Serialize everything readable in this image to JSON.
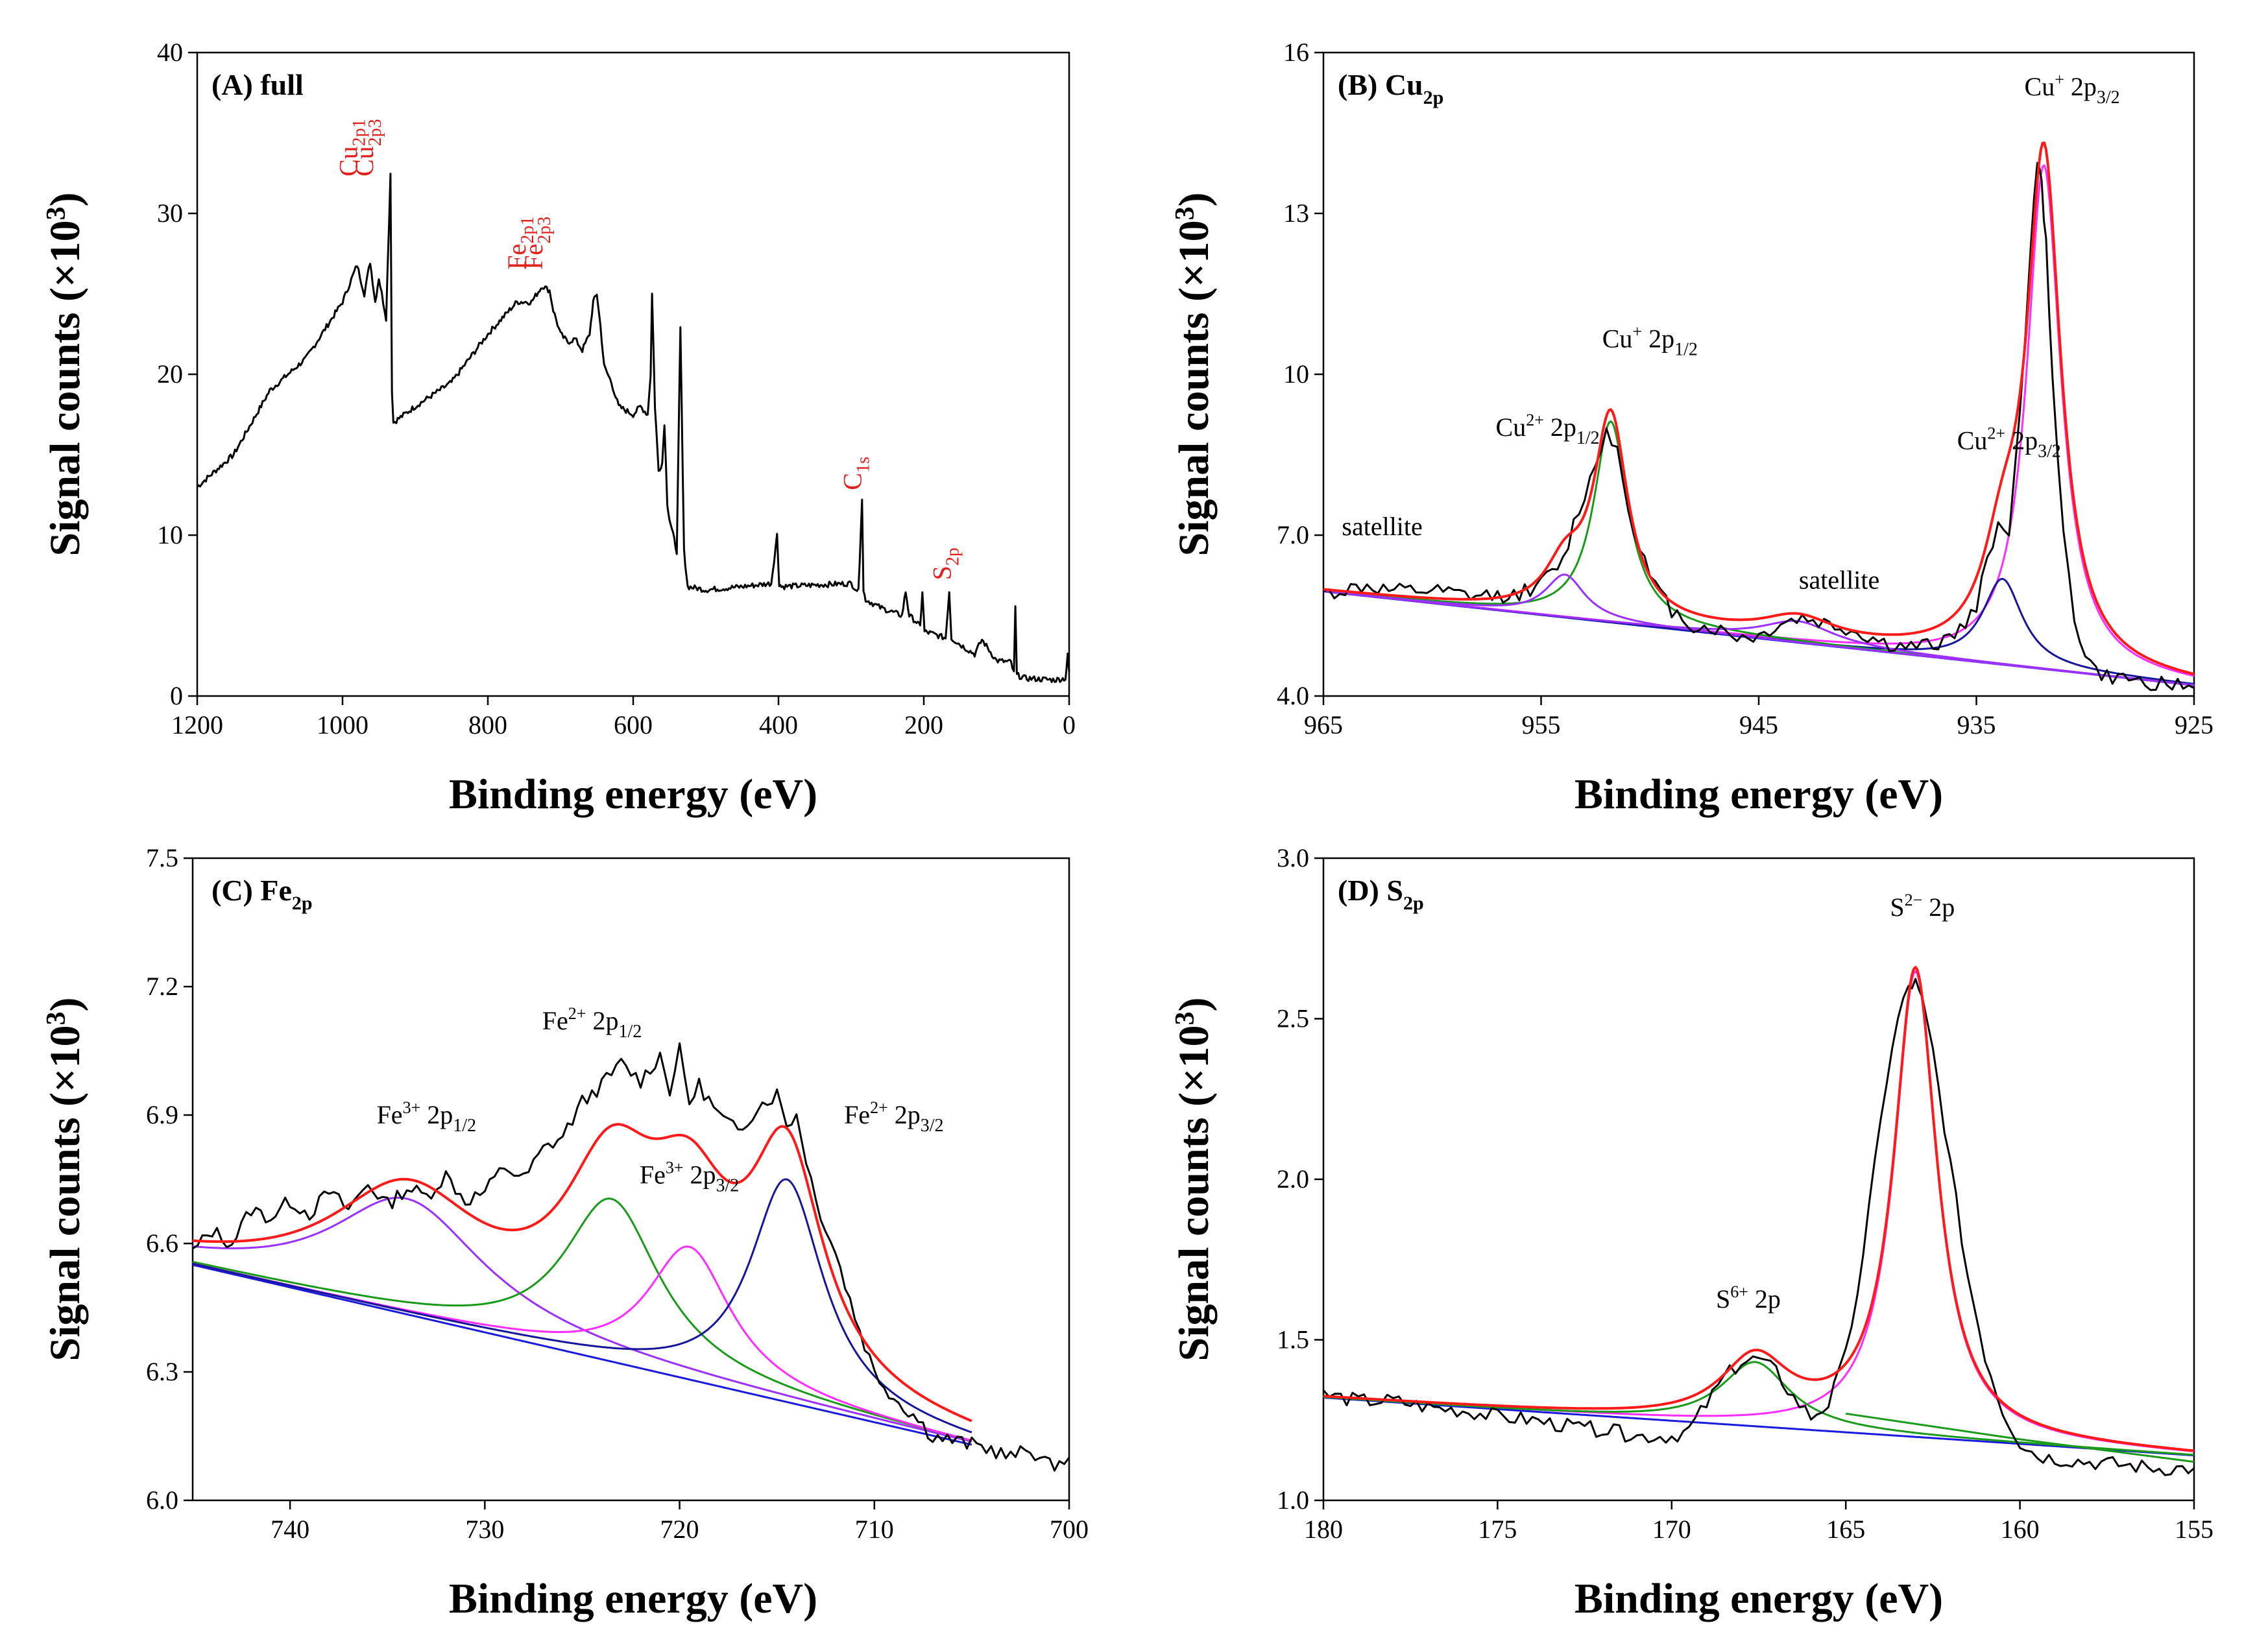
{
  "colors": {
    "raw": "#000000",
    "envelope": "#ff1a1a",
    "background": "#1a1adc",
    "green": "#199a19",
    "violet": "#9b30ff",
    "magenta": "#ff2cff",
    "navy": "#16169a",
    "label_red": "#e0201c"
  },
  "chart_data": [
    {
      "id": "A",
      "type": "line",
      "title": {
        "main": "(A) full",
        "sub": ""
      },
      "xlabel": "Binding energy (eV)",
      "ylabel": {
        "main": "Signal counts (×10",
        "sup": "3",
        "end": ")"
      },
      "xlim": [
        1200,
        0
      ],
      "ylim": [
        0,
        40
      ],
      "xticks": [
        1200,
        1000,
        800,
        600,
        400,
        200,
        0
      ],
      "xtick_labels": [
        "1200",
        "1000",
        "800",
        "600",
        "400",
        "200",
        "0"
      ],
      "yticks": [
        0,
        10,
        20,
        30,
        40
      ],
      "ytick_labels": [
        "0",
        "10",
        "20",
        "30",
        "40"
      ],
      "series": [
        {
          "name": "survey",
          "color": "raw",
          "x": [
            1200,
            1150,
            1100,
            1050,
            1000,
            980,
            970,
            962,
            955,
            950,
            940,
            934,
            932,
            930,
            900,
            850,
            800,
            760,
            740,
            725,
            715,
            710,
            700,
            690,
            680,
            670,
            660,
            655,
            650,
            645,
            640,
            630,
            620,
            600,
            590,
            580,
            576,
            574,
            570,
            565,
            560,
            557,
            553,
            550,
            545,
            540,
            535,
            530,
            525,
            500,
            450,
            410,
            402,
            399,
            396,
            350,
            300,
            290,
            285,
            283,
            280,
            260,
            230,
            225,
            220,
            210,
            205,
            202,
            199,
            190,
            170,
            165,
            162,
            150,
            130,
            120,
            100,
            80,
            76,
            74,
            72,
            60,
            20,
            5,
            2,
            0
          ],
          "y": [
            13,
            15,
            19,
            21,
            24.5,
            26.8,
            25,
            27,
            24.5,
            26,
            23.5,
            32.5,
            19,
            17,
            18,
            19.5,
            22.5,
            24.5,
            24.5,
            25.5,
            25.2,
            24,
            22.5,
            22,
            22.2,
            21.5,
            22.5,
            24.5,
            25,
            23,
            20.5,
            19.5,
            18,
            17.5,
            18,
            17.5,
            20,
            25,
            18,
            14,
            14.5,
            17,
            12,
            11,
            10,
            9,
            22.8,
            9,
            6.8,
            6.6,
            6.8,
            7,
            10,
            7,
            6.8,
            6.9,
            7,
            6.5,
            12.3,
            6.5,
            6,
            5.5,
            5,
            6.5,
            5,
            4.6,
            4.3,
            6.5,
            4,
            3.9,
            3.6,
            6.5,
            3.6,
            3.2,
            2.6,
            3.5,
            2.2,
            2.1,
            1.4,
            5.5,
            1.3,
            1.1,
            1,
            1.1,
            2.5,
            1.5
          ]
        }
      ],
      "annotations": [
        {
          "x": 980,
          "y": 32.3,
          "base": "Cu",
          "sub": "2p1",
          "sup": "",
          "color": "label_red",
          "rotate": -90
        },
        {
          "x": 958,
          "y": 32.3,
          "base": "Cu",
          "sub": "2p3",
          "sup": "",
          "color": "label_red",
          "rotate": -90
        },
        {
          "x": 748,
          "y": 26.5,
          "base": "Fe",
          "sub": "2p1",
          "sup": "",
          "color": "label_red",
          "rotate": -90
        },
        {
          "x": 725,
          "y": 26.5,
          "base": "Fe",
          "sub": "2p3",
          "sup": "",
          "color": "label_red",
          "rotate": -90
        },
        {
          "x": 286,
          "y": 12.8,
          "base": "C",
          "sub": "1s",
          "sup": "",
          "color": "label_red",
          "rotate": -90
        },
        {
          "x": 163,
          "y": 7.2,
          "base": "S",
          "sub": "2p",
          "sup": "",
          "color": "label_red",
          "rotate": -90
        }
      ]
    },
    {
      "id": "B",
      "type": "line",
      "title": {
        "main": "(B) Cu",
        "sub": "2p"
      },
      "xlabel": "Binding energy (eV)",
      "ylabel": {
        "main": "Signal counts (×10",
        "sup": "3",
        "end": ")"
      },
      "xlim": [
        965,
        925
      ],
      "ylim": [
        4,
        16
      ],
      "xticks": [
        965,
        955,
        945,
        935,
        925
      ],
      "xtick_labels": [
        "965",
        "955",
        "945",
        "935",
        "925"
      ],
      "yticks": [
        4,
        7,
        10,
        13,
        16
      ],
      "ytick_labels": [
        "4.0",
        "7.0",
        "10",
        "13",
        "16"
      ],
      "background": {
        "x": [
          965,
          925
        ],
        "y": [
          5.95,
          4.2
        ]
      },
      "peaks": [
        {
          "name": "Cu+ 2p3/2 fit",
          "center": 931.9,
          "height": 9.4,
          "width": 0.95,
          "color": "magenta"
        },
        {
          "name": "Cu2+ 2p3/2 fit",
          "center": 933.8,
          "height": 1.6,
          "width": 1.1,
          "color": "navy"
        },
        {
          "name": "Cu+ 2p1/2 fit",
          "center": 951.8,
          "height": 3.75,
          "width": 0.95,
          "color": "green"
        },
        {
          "name": "Cu2+ 2p1/2 fit",
          "center": 953.9,
          "height": 0.8,
          "width": 1.1,
          "color": "violet"
        },
        {
          "name": "satellite fit",
          "center": 943.2,
          "height": 0.4,
          "width": 2.0,
          "color": "violet"
        }
      ],
      "raw": {
        "x": [
          965,
          963,
          962,
          960,
          958,
          956,
          955,
          954,
          953.5,
          952.5,
          952,
          951.5,
          951,
          950,
          949,
          948,
          947,
          946,
          945,
          944,
          943,
          942,
          941,
          940,
          939,
          938,
          937,
          936,
          935,
          934.5,
          934,
          933.5,
          933,
          932.5,
          932.2,
          932,
          931.8,
          931.5,
          931,
          930.5,
          930,
          929.5,
          929,
          928,
          927,
          926,
          925
        ],
        "y": [
          5.9,
          6.05,
          5.95,
          5.95,
          5.85,
          5.9,
          6.1,
          6.5,
          7.2,
          8.3,
          9.0,
          8.6,
          7.5,
          6.2,
          5.6,
          5.3,
          5.25,
          5.1,
          5.1,
          5.35,
          5.45,
          5.35,
          5.25,
          5.1,
          4.95,
          4.9,
          4.95,
          5.15,
          5.6,
          6.6,
          7.2,
          7.1,
          9.2,
          12.5,
          14.0,
          13.5,
          12.4,
          10.0,
          7.0,
          5.4,
          4.8,
          4.45,
          4.35,
          4.3,
          4.25,
          4.2,
          4.15
        ]
      },
      "annotations": [
        {
          "x": 962.3,
          "y": 7.0,
          "base": "satellite",
          "sub": "",
          "sup": "",
          "color": "raw",
          "rotate": 0
        },
        {
          "x": 941.3,
          "y": 6.0,
          "base": "satellite",
          "sub": "",
          "sup": "",
          "color": "raw",
          "rotate": 0
        },
        {
          "x": 954.7,
          "y": 8.85,
          "base": "Cu",
          "sub": "1/2",
          "sup": "2+",
          "mid": " 2p",
          "color": "raw",
          "rotate": 0
        },
        {
          "x": 950.0,
          "y": 10.5,
          "base": "Cu",
          "sub": "1/2",
          "sup": "+",
          "mid": " 2p",
          "color": "raw",
          "rotate": 0
        },
        {
          "x": 933.5,
          "y": 8.6,
          "base": "Cu",
          "sub": "3/2",
          "sup": "2+",
          "mid": " 2p",
          "color": "raw",
          "rotate": 0
        },
        {
          "x": 930.6,
          "y": 15.2,
          "base": "Cu",
          "sub": "3/2",
          "sup": "+",
          "mid": " 2p",
          "color": "raw",
          "rotate": 0
        }
      ]
    },
    {
      "id": "C",
      "type": "line",
      "title": {
        "main": "(C) Fe",
        "sub": "2p"
      },
      "xlabel": "Binding energy (eV)",
      "ylabel": {
        "main": "Signal counts (×10",
        "sup": "3",
        "end": ")"
      },
      "xlim": [
        745,
        700
      ],
      "ylim": [
        6.0,
        7.5
      ],
      "xticks": [
        740,
        730,
        720,
        710,
        700
      ],
      "xtick_labels": [
        "740",
        "730",
        "720",
        "710",
        "700"
      ],
      "yticks": [
        6.0,
        6.3,
        6.6,
        6.9,
        7.2,
        7.5
      ],
      "ytick_labels": [
        "6.0",
        "6.3",
        "6.6",
        "6.9",
        "7.2",
        "7.5"
      ],
      "fit_range": [
        745,
        705
      ],
      "background": {
        "x": [
          745,
          705
        ],
        "y": [
          6.55,
          6.13
        ]
      },
      "peaks": [
        {
          "name": "Fe3+ 2p1/2 fit",
          "center": 734,
          "height": 0.27,
          "width": 4.8,
          "color": "violet"
        },
        {
          "name": "Fe2+ 2p1/2 fit",
          "center": 723.5,
          "height": 0.38,
          "width": 3.0,
          "color": "green"
        },
        {
          "name": "Fe3+ 2p3/2 fit",
          "center": 719.5,
          "height": 0.31,
          "width": 2.6,
          "color": "magenta"
        },
        {
          "name": "Fe2+ 2p3/2 fit",
          "center": 714.5,
          "height": 0.52,
          "width": 2.3,
          "color": "navy"
        }
      ],
      "raw": {
        "x": [
          745,
          744,
          743,
          742,
          741,
          740,
          739,
          738,
          737,
          736,
          735,
          734,
          733,
          732,
          731,
          730,
          729,
          728,
          727,
          726,
          725,
          724,
          723,
          722,
          721,
          720.5,
          720,
          719.5,
          719,
          718,
          717,
          716,
          715,
          714.5,
          714,
          713,
          712,
          711,
          710,
          709,
          708,
          707,
          706,
          705,
          704,
          703,
          702,
          701,
          700
        ],
        "y": [
          6.58,
          6.63,
          6.6,
          6.68,
          6.66,
          6.7,
          6.67,
          6.72,
          6.68,
          6.74,
          6.69,
          6.73,
          6.71,
          6.76,
          6.7,
          6.72,
          6.78,
          6.75,
          6.82,
          6.85,
          6.93,
          6.97,
          7.02,
          6.98,
          7.04,
          6.96,
          7.05,
          6.93,
          6.97,
          6.9,
          6.86,
          6.92,
          6.95,
          6.88,
          6.9,
          6.7,
          6.58,
          6.43,
          6.3,
          6.24,
          6.2,
          6.15,
          6.14,
          6.13,
          6.12,
          6.1,
          6.12,
          6.08,
          6.1
        ]
      },
      "annotations": [
        {
          "x": 733.0,
          "y": 6.88,
          "base": "Fe",
          "sub": "1/2",
          "sup": "3+",
          "mid": " 2p",
          "color": "raw",
          "rotate": 0
        },
        {
          "x": 724.5,
          "y": 7.1,
          "base": "Fe",
          "sub": "1/2",
          "sup": "2+",
          "mid": " 2p",
          "color": "raw",
          "rotate": 0
        },
        {
          "x": 719.5,
          "y": 6.74,
          "base": "Fe",
          "sub": "3/2",
          "sup": "3+",
          "mid": " 2p",
          "color": "raw",
          "rotate": 0
        },
        {
          "x": 709.0,
          "y": 6.88,
          "base": "Fe",
          "sub": "3/2",
          "sup": "2+",
          "mid": " 2p",
          "color": "raw",
          "rotate": 0
        }
      ]
    },
    {
      "id": "D",
      "type": "line",
      "title": {
        "main": "(D) S",
        "sub": "2p"
      },
      "xlabel": "Binding energy (eV)",
      "ylabel": {
        "main": "Signal counts (×10",
        "sup": "3",
        "end": ")"
      },
      "xlim": [
        180,
        155
      ],
      "ylim": [
        1.0,
        3.0
      ],
      "xticks": [
        180,
        175,
        170,
        165,
        160,
        155
      ],
      "xtick_labels": [
        "180",
        "175",
        "170",
        "165",
        "160",
        "155"
      ],
      "yticks": [
        1.0,
        1.5,
        2.0,
        2.5,
        3.0
      ],
      "ytick_labels": [
        "1.0",
        "1.5",
        "2.0",
        "2.5",
        "3.0"
      ],
      "background": {
        "x": [
          180,
          155
        ],
        "y": [
          1.32,
          1.14
        ]
      },
      "peaks": [
        {
          "name": "S2- 2p fit",
          "center": 163.0,
          "height": 1.45,
          "width": 0.75,
          "color": "magenta"
        },
        {
          "name": "S6+ 2p fit",
          "center": 167.6,
          "height": 0.2,
          "width": 1.2,
          "color": "green"
        }
      ],
      "extra_lines": [
        {
          "name": "background tail",
          "color": "green",
          "x": [
            165,
            160,
            155
          ],
          "y": [
            1.27,
            1.19,
            1.12
          ]
        }
      ],
      "raw": {
        "x": [
          180,
          179,
          178,
          177,
          176,
          175,
          174,
          173,
          172,
          171,
          170,
          169.5,
          169,
          168.5,
          168,
          167.5,
          167,
          166.5,
          166,
          165.5,
          165,
          164.5,
          164,
          163.5,
          163.2,
          163,
          162.8,
          162.5,
          162,
          161.5,
          161,
          160.5,
          160,
          159.5,
          159,
          158,
          157,
          156,
          155
        ],
        "y": [
          1.33,
          1.31,
          1.31,
          1.29,
          1.28,
          1.26,
          1.25,
          1.23,
          1.22,
          1.2,
          1.2,
          1.22,
          1.3,
          1.38,
          1.43,
          1.44,
          1.4,
          1.32,
          1.26,
          1.3,
          1.45,
          1.75,
          2.2,
          2.5,
          2.6,
          2.61,
          2.55,
          2.4,
          2.05,
          1.7,
          1.45,
          1.28,
          1.18,
          1.14,
          1.13,
          1.12,
          1.11,
          1.1,
          1.1
        ]
      },
      "annotations": [
        {
          "x": 167.8,
          "y": 1.6,
          "base": "S",
          "sub": "",
          "sup": "6+",
          "mid": " 2p",
          "color": "raw",
          "rotate": 0
        },
        {
          "x": 162.8,
          "y": 2.82,
          "base": "S",
          "sub": "",
          "sup": "2−",
          "mid": " 2p",
          "color": "raw",
          "rotate": 0
        }
      ]
    }
  ]
}
